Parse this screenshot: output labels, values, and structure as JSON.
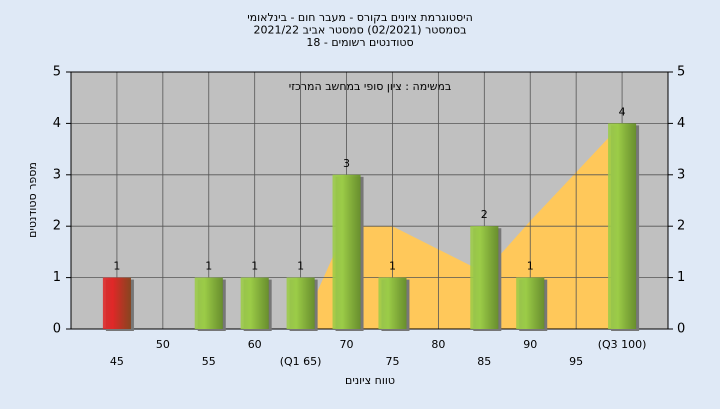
{
  "chart_data": {
    "type": "bar",
    "title_lines": [
      "היסטוגרמת ציונים בקורס - מעבר חום - בינלאומי",
      "בסמסטר  (02/2021)  סמסטר אביב 2021/22",
      "סטודנטים רשומים - 18"
    ],
    "subtitle": "במשימה : ציון סופי במחשב המרכזי",
    "x_label": "טווח ציונים",
    "y_label": "מספר סטודנטים",
    "categories": [
      "45",
      "50",
      "55",
      "60",
      "(Q1 65)",
      "70",
      "75",
      "80",
      "85",
      "90",
      "95",
      "(Q3 100)"
    ],
    "values": [
      1,
      0,
      1,
      1,
      1,
      3,
      1,
      0,
      2,
      1,
      0,
      4
    ],
    "colors": [
      "#e02828",
      "#9ccc48",
      "#9ccc48",
      "#9ccc48",
      "#9ccc48",
      "#9ccc48",
      "#9ccc48",
      "#9ccc48",
      "#9ccc48",
      "#9ccc48",
      "#9ccc48",
      "#9ccc48"
    ],
    "area_values": [
      null,
      null,
      null,
      null,
      0,
      2,
      2,
      1.55,
      1.1,
      2.1,
      3.05,
      4
    ],
    "area_color": "#ffc85a",
    "ylim": [
      0,
      5
    ],
    "yticks": [
      0,
      1,
      2,
      3,
      4,
      5
    ],
    "y2lim": [
      0,
      5
    ],
    "y2ticks": [
      0,
      1,
      2,
      3,
      4,
      5
    ],
    "grid": true
  }
}
